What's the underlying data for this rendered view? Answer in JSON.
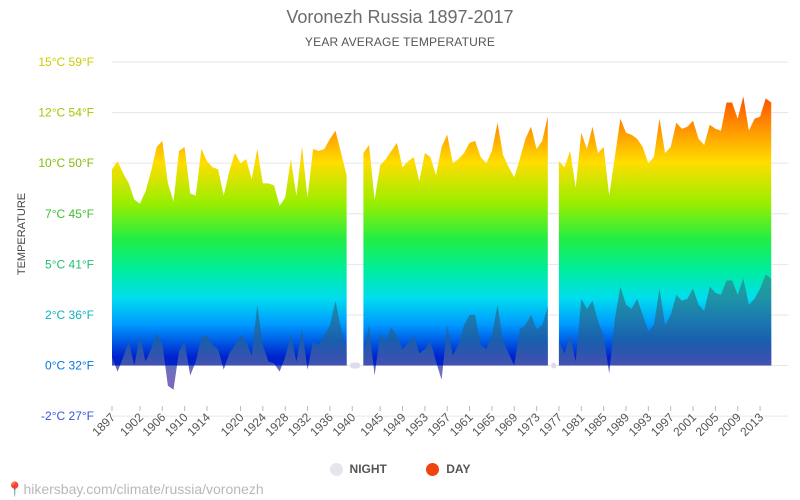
{
  "title": "Voronezh Russia 1897-2017",
  "subtitle": "YEAR AVERAGE TEMPERATURE",
  "source_url": "hikersbay.com/climate/russia/voronezh",
  "legend": {
    "night_label": "NIGHT",
    "day_label": "DAY",
    "night_color": "#e5e5ee",
    "day_color": "#ee4411"
  },
  "chart_data": {
    "type": "area",
    "ylabel": "TEMPERATURE",
    "ylim": [
      -2,
      15
    ],
    "y_ticks": [
      {
        "value": 15,
        "label": "15°C 59°F",
        "color": "#cccc00"
      },
      {
        "value": 12.5,
        "label": "12°C 54°F",
        "color": "#a9c400"
      },
      {
        "value": 10,
        "label": "10°C 50°F",
        "color": "#7fbf00"
      },
      {
        "value": 7.5,
        "label": "7°C 45°F",
        "color": "#3cbf2f"
      },
      {
        "value": 5,
        "label": "5°C 41°F",
        "color": "#1fbf6f"
      },
      {
        "value": 2.5,
        "label": "2°C 36°F",
        "color": "#11b0c0"
      },
      {
        "value": 0,
        "label": "0°C 32°F",
        "color": "#0077dd"
      },
      {
        "value": -2.5,
        "label": "-2°C 27°F",
        "color": "#3355dd"
      }
    ],
    "x_tick_labels": [
      "1897",
      "1902",
      "1906",
      "1910",
      "1914",
      "1920",
      "1924",
      "1928",
      "1932",
      "1936",
      "1940",
      "1945",
      "1949",
      "1953",
      "1957",
      "1961",
      "1965",
      "1969",
      "1973",
      "1977",
      "1981",
      "1985",
      "1989",
      "1993",
      "1997",
      "2001",
      "2005",
      "2009",
      "2013"
    ],
    "x_range": [
      1897,
      2018
    ],
    "grid": true,
    "legend_position": "bottom",
    "series": [
      {
        "name": "DAY",
        "points": [
          [
            1897,
            9.7
          ],
          [
            1898,
            10.1
          ],
          [
            1899,
            9.5
          ],
          [
            1900,
            9.0
          ],
          [
            1901,
            8.2
          ],
          [
            1902,
            8.0
          ],
          [
            1903,
            8.6
          ],
          [
            1904,
            9.6
          ],
          [
            1905,
            10.8
          ],
          [
            1906,
            11.1
          ],
          [
            1907,
            9.0
          ],
          [
            1908,
            8.1
          ],
          [
            1909,
            10.6
          ],
          [
            1910,
            10.8
          ],
          [
            1911,
            8.5
          ],
          [
            1912,
            8.4
          ],
          [
            1913,
            10.7
          ],
          [
            1914,
            10.1
          ],
          [
            1915,
            9.8
          ],
          [
            1916,
            9.7
          ],
          [
            1917,
            8.4
          ],
          [
            1918,
            9.6
          ],
          [
            1919,
            10.5
          ],
          [
            1920,
            10.0
          ],
          [
            1921,
            10.2
          ],
          [
            1922,
            9.2
          ],
          [
            1923,
            10.7
          ],
          [
            1924,
            9.0
          ],
          [
            1925,
            9.0
          ],
          [
            1926,
            8.9
          ],
          [
            1927,
            7.9
          ],
          [
            1928,
            8.3
          ],
          [
            1929,
            10.2
          ],
          [
            1930,
            8.4
          ],
          [
            1931,
            10.8
          ],
          [
            1932,
            8.3
          ],
          [
            1933,
            10.7
          ],
          [
            1934,
            10.6
          ],
          [
            1935,
            10.7
          ],
          [
            1936,
            11.2
          ],
          [
            1937,
            11.6
          ],
          [
            1938,
            10.5
          ],
          [
            1939,
            9.4
          ],
          [
            1940,
            0
          ],
          [
            1941,
            0
          ],
          [
            1942,
            10.5
          ],
          [
            1943,
            10.9
          ],
          [
            1944,
            8.2
          ],
          [
            1945,
            9.9
          ],
          [
            1946,
            10.2
          ],
          [
            1947,
            10.6
          ],
          [
            1948,
            11.0
          ],
          [
            1949,
            9.8
          ],
          [
            1950,
            10.1
          ],
          [
            1951,
            10.3
          ],
          [
            1952,
            9.1
          ],
          [
            1953,
            10.5
          ],
          [
            1954,
            10.3
          ],
          [
            1955,
            9.4
          ],
          [
            1956,
            10.8
          ],
          [
            1957,
            11.4
          ],
          [
            1958,
            10.0
          ],
          [
            1959,
            10.2
          ],
          [
            1960,
            10.5
          ],
          [
            1961,
            11.0
          ],
          [
            1962,
            11.1
          ],
          [
            1963,
            10.3
          ],
          [
            1964,
            10.0
          ],
          [
            1965,
            10.6
          ],
          [
            1966,
            12.0
          ],
          [
            1967,
            10.4
          ],
          [
            1968,
            9.8
          ],
          [
            1969,
            9.3
          ],
          [
            1970,
            10.2
          ],
          [
            1971,
            11.2
          ],
          [
            1972,
            11.8
          ],
          [
            1973,
            10.7
          ],
          [
            1974,
            11.1
          ],
          [
            1975,
            12.3
          ],
          [
            1976,
            0
          ],
          [
            1977,
            10.1
          ],
          [
            1978,
            9.8
          ],
          [
            1979,
            10.6
          ],
          [
            1980,
            8.8
          ],
          [
            1981,
            11.5
          ],
          [
            1982,
            10.7
          ],
          [
            1983,
            11.8
          ],
          [
            1984,
            10.5
          ],
          [
            1985,
            10.8
          ],
          [
            1986,
            8.4
          ],
          [
            1987,
            10.3
          ],
          [
            1988,
            12.2
          ],
          [
            1989,
            11.5
          ],
          [
            1990,
            11.4
          ],
          [
            1991,
            11.2
          ],
          [
            1992,
            10.8
          ],
          [
            1993,
            10.0
          ],
          [
            1994,
            10.3
          ],
          [
            1995,
            12.2
          ],
          [
            1996,
            10.5
          ],
          [
            1997,
            10.8
          ],
          [
            1998,
            12.0
          ],
          [
            1999,
            11.7
          ],
          [
            2000,
            11.8
          ],
          [
            2001,
            12.1
          ],
          [
            2002,
            11.2
          ],
          [
            2003,
            10.9
          ],
          [
            2004,
            11.9
          ],
          [
            2005,
            11.7
          ],
          [
            2006,
            11.6
          ],
          [
            2007,
            13.0
          ],
          [
            2008,
            13.0
          ],
          [
            2009,
            12.2
          ],
          [
            2010,
            13.3
          ],
          [
            2011,
            11.6
          ],
          [
            2012,
            12.2
          ],
          [
            2013,
            12.3
          ],
          [
            2014,
            13.2
          ],
          [
            2015,
            13.0
          ]
        ]
      },
      {
        "name": "NIGHT",
        "points": [
          [
            1897,
            0.4
          ],
          [
            1898,
            -0.3
          ],
          [
            1899,
            0.4
          ],
          [
            1900,
            1.2
          ],
          [
            1901,
            0.0
          ],
          [
            1902,
            1.5
          ],
          [
            1903,
            0.2
          ],
          [
            1904,
            0.8
          ],
          [
            1905,
            1.6
          ],
          [
            1906,
            1.1
          ],
          [
            1907,
            -1.0
          ],
          [
            1908,
            -1.2
          ],
          [
            1909,
            0.7
          ],
          [
            1910,
            1.2
          ],
          [
            1911,
            -0.5
          ],
          [
            1912,
            0.2
          ],
          [
            1913,
            1.4
          ],
          [
            1914,
            1.5
          ],
          [
            1915,
            1.0
          ],
          [
            1916,
            0.8
          ],
          [
            1917,
            -0.2
          ],
          [
            1918,
            0.6
          ],
          [
            1919,
            1.0
          ],
          [
            1920,
            1.5
          ],
          [
            1921,
            1.2
          ],
          [
            1922,
            0.5
          ],
          [
            1923,
            3.0
          ],
          [
            1924,
            1.0
          ],
          [
            1925,
            0.2
          ],
          [
            1926,
            0.1
          ],
          [
            1927,
            -0.3
          ],
          [
            1928,
            0.4
          ],
          [
            1929,
            1.5
          ],
          [
            1930,
            0.2
          ],
          [
            1931,
            1.8
          ],
          [
            1932,
            -0.2
          ],
          [
            1933,
            1.2
          ],
          [
            1934,
            1.0
          ],
          [
            1935,
            1.5
          ],
          [
            1936,
            2.0
          ],
          [
            1937,
            3.2
          ],
          [
            1938,
            1.8
          ],
          [
            1939,
            0.8
          ],
          [
            1940,
            0
          ],
          [
            1941,
            0
          ],
          [
            1942,
            0.6
          ],
          [
            1943,
            2.0
          ],
          [
            1944,
            -0.5
          ],
          [
            1945,
            1.6
          ],
          [
            1946,
            1.2
          ],
          [
            1947,
            1.9
          ],
          [
            1948,
            1.5
          ],
          [
            1949,
            0.8
          ],
          [
            1950,
            1.1
          ],
          [
            1951,
            1.5
          ],
          [
            1952,
            0.6
          ],
          [
            1953,
            0.8
          ],
          [
            1954,
            1.2
          ],
          [
            1955,
            0.2
          ],
          [
            1956,
            -0.7
          ],
          [
            1957,
            2.0
          ],
          [
            1958,
            0.5
          ],
          [
            1959,
            1.0
          ],
          [
            1960,
            2.0
          ],
          [
            1961,
            2.5
          ],
          [
            1962,
            2.5
          ],
          [
            1963,
            1.0
          ],
          [
            1964,
            0.8
          ],
          [
            1965,
            1.5
          ],
          [
            1966,
            3.0
          ],
          [
            1967,
            1.2
          ],
          [
            1968,
            0.6
          ],
          [
            1969,
            0.0
          ],
          [
            1970,
            1.8
          ],
          [
            1971,
            2.0
          ],
          [
            1972,
            2.5
          ],
          [
            1973,
            1.8
          ],
          [
            1974,
            2.0
          ],
          [
            1975,
            2.9
          ],
          [
            1976,
            0
          ],
          [
            1977,
            1.2
          ],
          [
            1978,
            0.6
          ],
          [
            1979,
            1.5
          ],
          [
            1980,
            0.2
          ],
          [
            1981,
            3.3
          ],
          [
            1982,
            2.8
          ],
          [
            1983,
            3.2
          ],
          [
            1984,
            2.2
          ],
          [
            1985,
            1.5
          ],
          [
            1986,
            -0.4
          ],
          [
            1987,
            2.3
          ],
          [
            1988,
            3.9
          ],
          [
            1989,
            3.0
          ],
          [
            1990,
            2.8
          ],
          [
            1991,
            3.3
          ],
          [
            1992,
            2.5
          ],
          [
            1993,
            1.7
          ],
          [
            1994,
            2.0
          ],
          [
            1995,
            3.8
          ],
          [
            1996,
            2.0
          ],
          [
            1997,
            2.5
          ],
          [
            1998,
            3.5
          ],
          [
            1999,
            3.2
          ],
          [
            2000,
            3.3
          ],
          [
            2001,
            3.8
          ],
          [
            2002,
            3.0
          ],
          [
            2003,
            2.7
          ],
          [
            2004,
            3.9
          ],
          [
            2005,
            3.6
          ],
          [
            2006,
            3.5
          ],
          [
            2007,
            4.2
          ],
          [
            2008,
            4.2
          ],
          [
            2009,
            3.5
          ],
          [
            2010,
            4.3
          ],
          [
            2011,
            3.0
          ],
          [
            2012,
            3.3
          ],
          [
            2013,
            3.8
          ],
          [
            2014,
            4.5
          ],
          [
            2015,
            4.3
          ]
        ]
      }
    ]
  }
}
